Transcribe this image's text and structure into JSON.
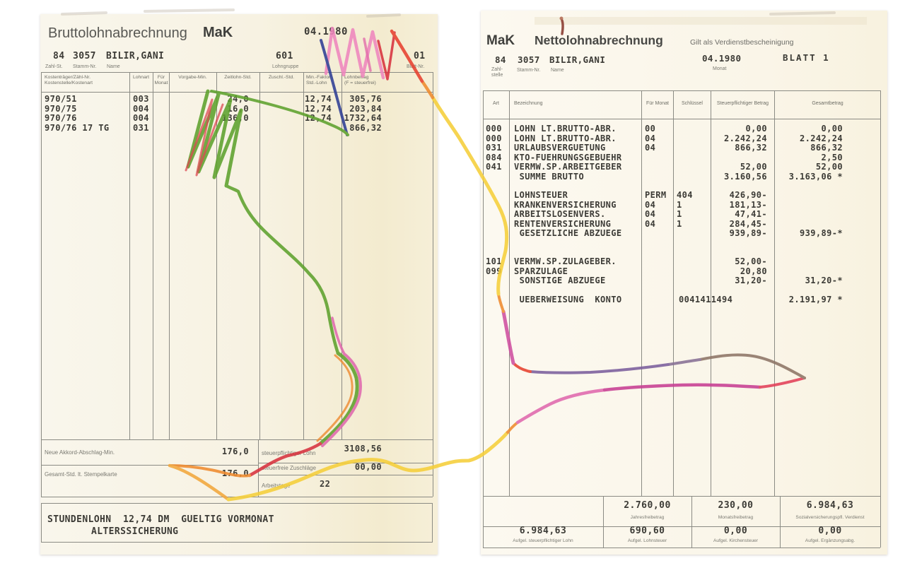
{
  "left_doc": {
    "title": "Bruttolohnabrechnung",
    "logo": "MaK",
    "date": "04.1980",
    "id_row": {
      "zahl_st": "84",
      "stamm_nr": "3057",
      "name": "BILIR,GANI",
      "lohngruppe": "601",
      "blatt_nr": "01"
    },
    "id_labels": {
      "zahl_st": "Zahl-St.",
      "stamm_nr": "Stamm-Nr.",
      "name": "Name",
      "lohngruppe": "Lohngruppe",
      "blatt_nr": "Blatt-Nr."
    },
    "table": {
      "headers": [
        "Kostenträger/Zähl-Nr.\nKostenstelle/Kostenart",
        "Lohnart",
        "Für\nMonat",
        "Vorgabe-Min.",
        "Zeitlohn-Std.",
        "Zuschl.-Std.",
        "Min.-Faktor\nStd.-Lohn",
        "Lohnbetrag\n(F = steuerfrei)"
      ],
      "rows": [
        {
          "kosten": "970/51",
          "lohnart": "003",
          "zeitlohn": "24,0",
          "faktor": "12,74",
          "betrag": "305,76"
        },
        {
          "kosten": "970/75",
          "lohnart": "004",
          "zeitlohn": "16,0",
          "faktor": "12,74",
          "betrag": "203,84"
        },
        {
          "kosten": "970/76",
          "lohnart": "004",
          "zeitlohn": "136,0",
          "faktor": "12,74",
          "betrag": "1732,64"
        },
        {
          "kosten": "970/76 17 TG",
          "lohnart": "031",
          "zeitlohn": "",
          "faktor": "",
          "betrag": "866,32"
        }
      ]
    },
    "footer": {
      "akkord_label": "Neue Akkord-Abschlag-Min.",
      "akkord_value": "176,0",
      "gesamt_label": "Gesamt-Std. lt. Stempelkarte",
      "gesamt_value": "176,0",
      "steuerpfl_label": "steuerpflichtiger Lohn",
      "steuerpfl_value": "3108,56",
      "steuerfrei_label": "steuerfreie Zuschläge",
      "steuerfrei_value": "00,00",
      "arbeitstage_label": "Arbeitstage",
      "arbeitstage_value": "22"
    },
    "note_line1": "STUNDENLOHN  12,74 DM  GUELTIG VORMONAT",
    "note_line2": "ALTERSSICHERUNG"
  },
  "right_doc": {
    "logo": "MaK",
    "title": "Nettolohnabrechnung",
    "subtitle": "Gilt als Verdienstbescheinigung",
    "id_row": {
      "zahlstelle": "84",
      "stamm_nr": "3057",
      "name": "BILIR,GANI",
      "monat": "04.1980",
      "blatt": "BLATT 1"
    },
    "id_labels": {
      "zahlstelle": "Zahl-\nstelle",
      "stamm_nr": "Stamm-Nr.",
      "name": "Name",
      "monat": "Monat"
    },
    "table": {
      "headers": [
        "Art",
        "Bezeichnung",
        "Für Monat",
        "Schlüssel",
        "Steuerpflichtiger Betrag",
        "Gesamtbetrag"
      ],
      "groups": [
        {
          "rows": [
            {
              "art": "000",
              "bez": "LOHN LT.BRUTTO-ABR.",
              "monat": "00",
              "schl": "",
              "steuer": "0,00",
              "gesamt": "0,00"
            },
            {
              "art": "000",
              "bez": "LOHN LT.BRUTTO-ABR.",
              "monat": "04",
              "schl": "",
              "steuer": "2.242,24",
              "gesamt": "2.242,24"
            },
            {
              "art": "031",
              "bez": "URLAUBSVERGUETUNG",
              "monat": "04",
              "schl": "",
              "steuer": "866,32",
              "gesamt": "866,32"
            },
            {
              "art": "084",
              "bez": "KTO-FUEHRUNGSGEBUEHR",
              "monat": "",
              "schl": "",
              "steuer": "",
              "gesamt": "2,50"
            },
            {
              "art": "041",
              "bez": "VERMW.SP.ARBEITGEBER",
              "monat": "",
              "schl": "",
              "steuer": "52,00",
              "gesamt": "52,00"
            },
            {
              "art": "",
              "bez": " SUMME BRUTTO",
              "monat": "",
              "schl": "",
              "steuer": "3.160,56",
              "gesamt": "3.163,06 *"
            }
          ]
        },
        {
          "rows": [
            {
              "art": "",
              "bez": "LOHNSTEUER",
              "monat": "PERM",
              "schl": "404",
              "steuer": "426,90-",
              "gesamt": ""
            },
            {
              "art": "",
              "bez": "KRANKENVERSICHERUNG",
              "monat": "04",
              "schl": "1",
              "steuer": "181,13-",
              "gesamt": ""
            },
            {
              "art": "",
              "bez": "ARBEITSLOSENVERS.",
              "monat": "04",
              "schl": "1",
              "steuer": "47,41-",
              "gesamt": ""
            },
            {
              "art": "",
              "bez": "RENTENVERSICHERUNG",
              "monat": "04",
              "schl": "1",
              "steuer": "284,45-",
              "gesamt": ""
            },
            {
              "art": "",
              "bez": " GESETZLICHE ABZUEGE",
              "monat": "",
              "schl": "",
              "steuer": "939,89-",
              "gesamt": "939,89-*"
            }
          ]
        },
        {
          "rows": [
            {
              "art": "101",
              "bez": "VERMW.SP.ZULAGEBER.",
              "monat": "",
              "schl": "",
              "steuer": "52,00-",
              "gesamt": ""
            },
            {
              "art": "099",
              "bez": "SPARZULAGE",
              "monat": "",
              "schl": "",
              "steuer": "20,80",
              "gesamt": ""
            },
            {
              "art": "",
              "bez": " SONSTIGE ABZUEGE",
              "monat": "",
              "schl": "",
              "steuer": "31,20-",
              "gesamt": "31,20-*"
            }
          ]
        },
        {
          "rows": [
            {
              "art": "",
              "bez": " UEBERWEISUNG  KONTO",
              "monat": "",
              "schl": "",
              "konto": "0041411494",
              "steuer": "",
              "gesamt": "2.191,97 *"
            }
          ]
        }
      ]
    },
    "footer": {
      "rows": [
        [
          {
            "value": "",
            "label": ""
          },
          {
            "value": "2.760,00",
            "label": "Jahresfreibetrag"
          },
          {
            "value": "230,00",
            "label": "Monatsfreibetrag"
          },
          {
            "value": "6.984,63",
            "label": "Sozialversicherungspfl. Verdienst"
          }
        ],
        [
          {
            "value": "6.984,63",
            "label": "Aufgel. steuerpflichtiger Lohn"
          },
          {
            "value": "690,60",
            "label": "Aufgel. Lohnsteuer"
          },
          {
            "value": "0,00",
            "label": "Aufgel. Kirchensteuer"
          },
          {
            "value": "0,00",
            "label": "Aufgel. Ergänzungsabg."
          }
        ]
      ]
    }
  },
  "scribble_colors": {
    "green": "#5ea12d",
    "blue": "#2e3e95",
    "pink_light": "#ee86bd",
    "pink_deep": "#e05ba4",
    "pink": "#e068ae",
    "magenta": "#c73e92",
    "magenta_light": "#cf4ea0",
    "red": "#d8323e",
    "red_pink": "#e23f58",
    "red_orange": "#e6402f",
    "orange": "#ee8a2e",
    "yellow_orange": "#f2a73c",
    "yellow": "#f5ce39",
    "purple": "#7a5e9d",
    "gray_purple": "#877094",
    "gray_brown": "#8d7566",
    "stain": "#7c241a",
    "stain2": "#a34a30",
    "smudge": "#c3bcae",
    "band": "#eadfc6"
  }
}
